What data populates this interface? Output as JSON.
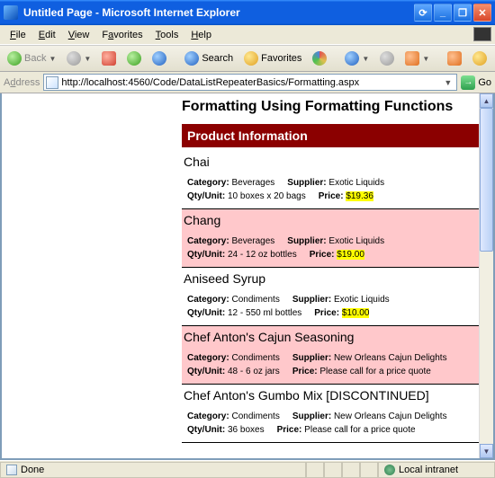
{
  "window": {
    "title": "Untitled Page - Microsoft Internet Explorer"
  },
  "menu": {
    "file": "File",
    "edit": "Edit",
    "view": "View",
    "favorites": "Favorites",
    "tools": "Tools",
    "help": "Help"
  },
  "toolbar": {
    "back": "Back",
    "search": "Search",
    "favorites": "Favorites"
  },
  "address": {
    "label": "Address",
    "url": "http://localhost:4560/Code/DataListRepeaterBasics/Formatting.aspx",
    "go": "Go"
  },
  "page": {
    "heading": "Formatting Using Formatting Functions",
    "sectionTitle": "Product Information",
    "labels": {
      "category": "Category:",
      "supplier": "Supplier:",
      "qtyunit": "Qty/Unit:",
      "price": "Price:"
    },
    "products": [
      {
        "name": "Chai",
        "category": "Beverages",
        "supplier": "Exotic Liquids",
        "qty": "10 boxes x 20 bags",
        "price": "$19.36",
        "priceHighlight": true,
        "rowHighlight": false
      },
      {
        "name": "Chang",
        "category": "Beverages",
        "supplier": "Exotic Liquids",
        "qty": "24 - 12 oz bottles",
        "price": "$19.00",
        "priceHighlight": true,
        "rowHighlight": true
      },
      {
        "name": "Aniseed Syrup",
        "category": "Condiments",
        "supplier": "Exotic Liquids",
        "qty": "12 - 550 ml bottles",
        "price": "$10.00",
        "priceHighlight": true,
        "rowHighlight": false
      },
      {
        "name": "Chef Anton's Cajun Seasoning",
        "category": "Condiments",
        "supplier": "New Orleans Cajun Delights",
        "qty": "48 - 6 oz jars",
        "price": "Please call for a price quote",
        "priceHighlight": false,
        "rowHighlight": true
      },
      {
        "name": "Chef Anton's Gumbo Mix [DISCONTINUED]",
        "category": "Condiments",
        "supplier": "New Orleans Cajun Delights",
        "qty": "36 boxes",
        "price": "Please call for a price quote",
        "priceHighlight": false,
        "rowHighlight": false
      }
    ]
  },
  "status": {
    "done": "Done",
    "zone": "Local intranet"
  },
  "colors": {
    "titlebar": "#0f5fe0",
    "sectionHeader": "#8b0000",
    "rowHighlight": "#ffc8cb",
    "priceHighlight": "#ffff00",
    "chrome": "#ece9d8"
  }
}
